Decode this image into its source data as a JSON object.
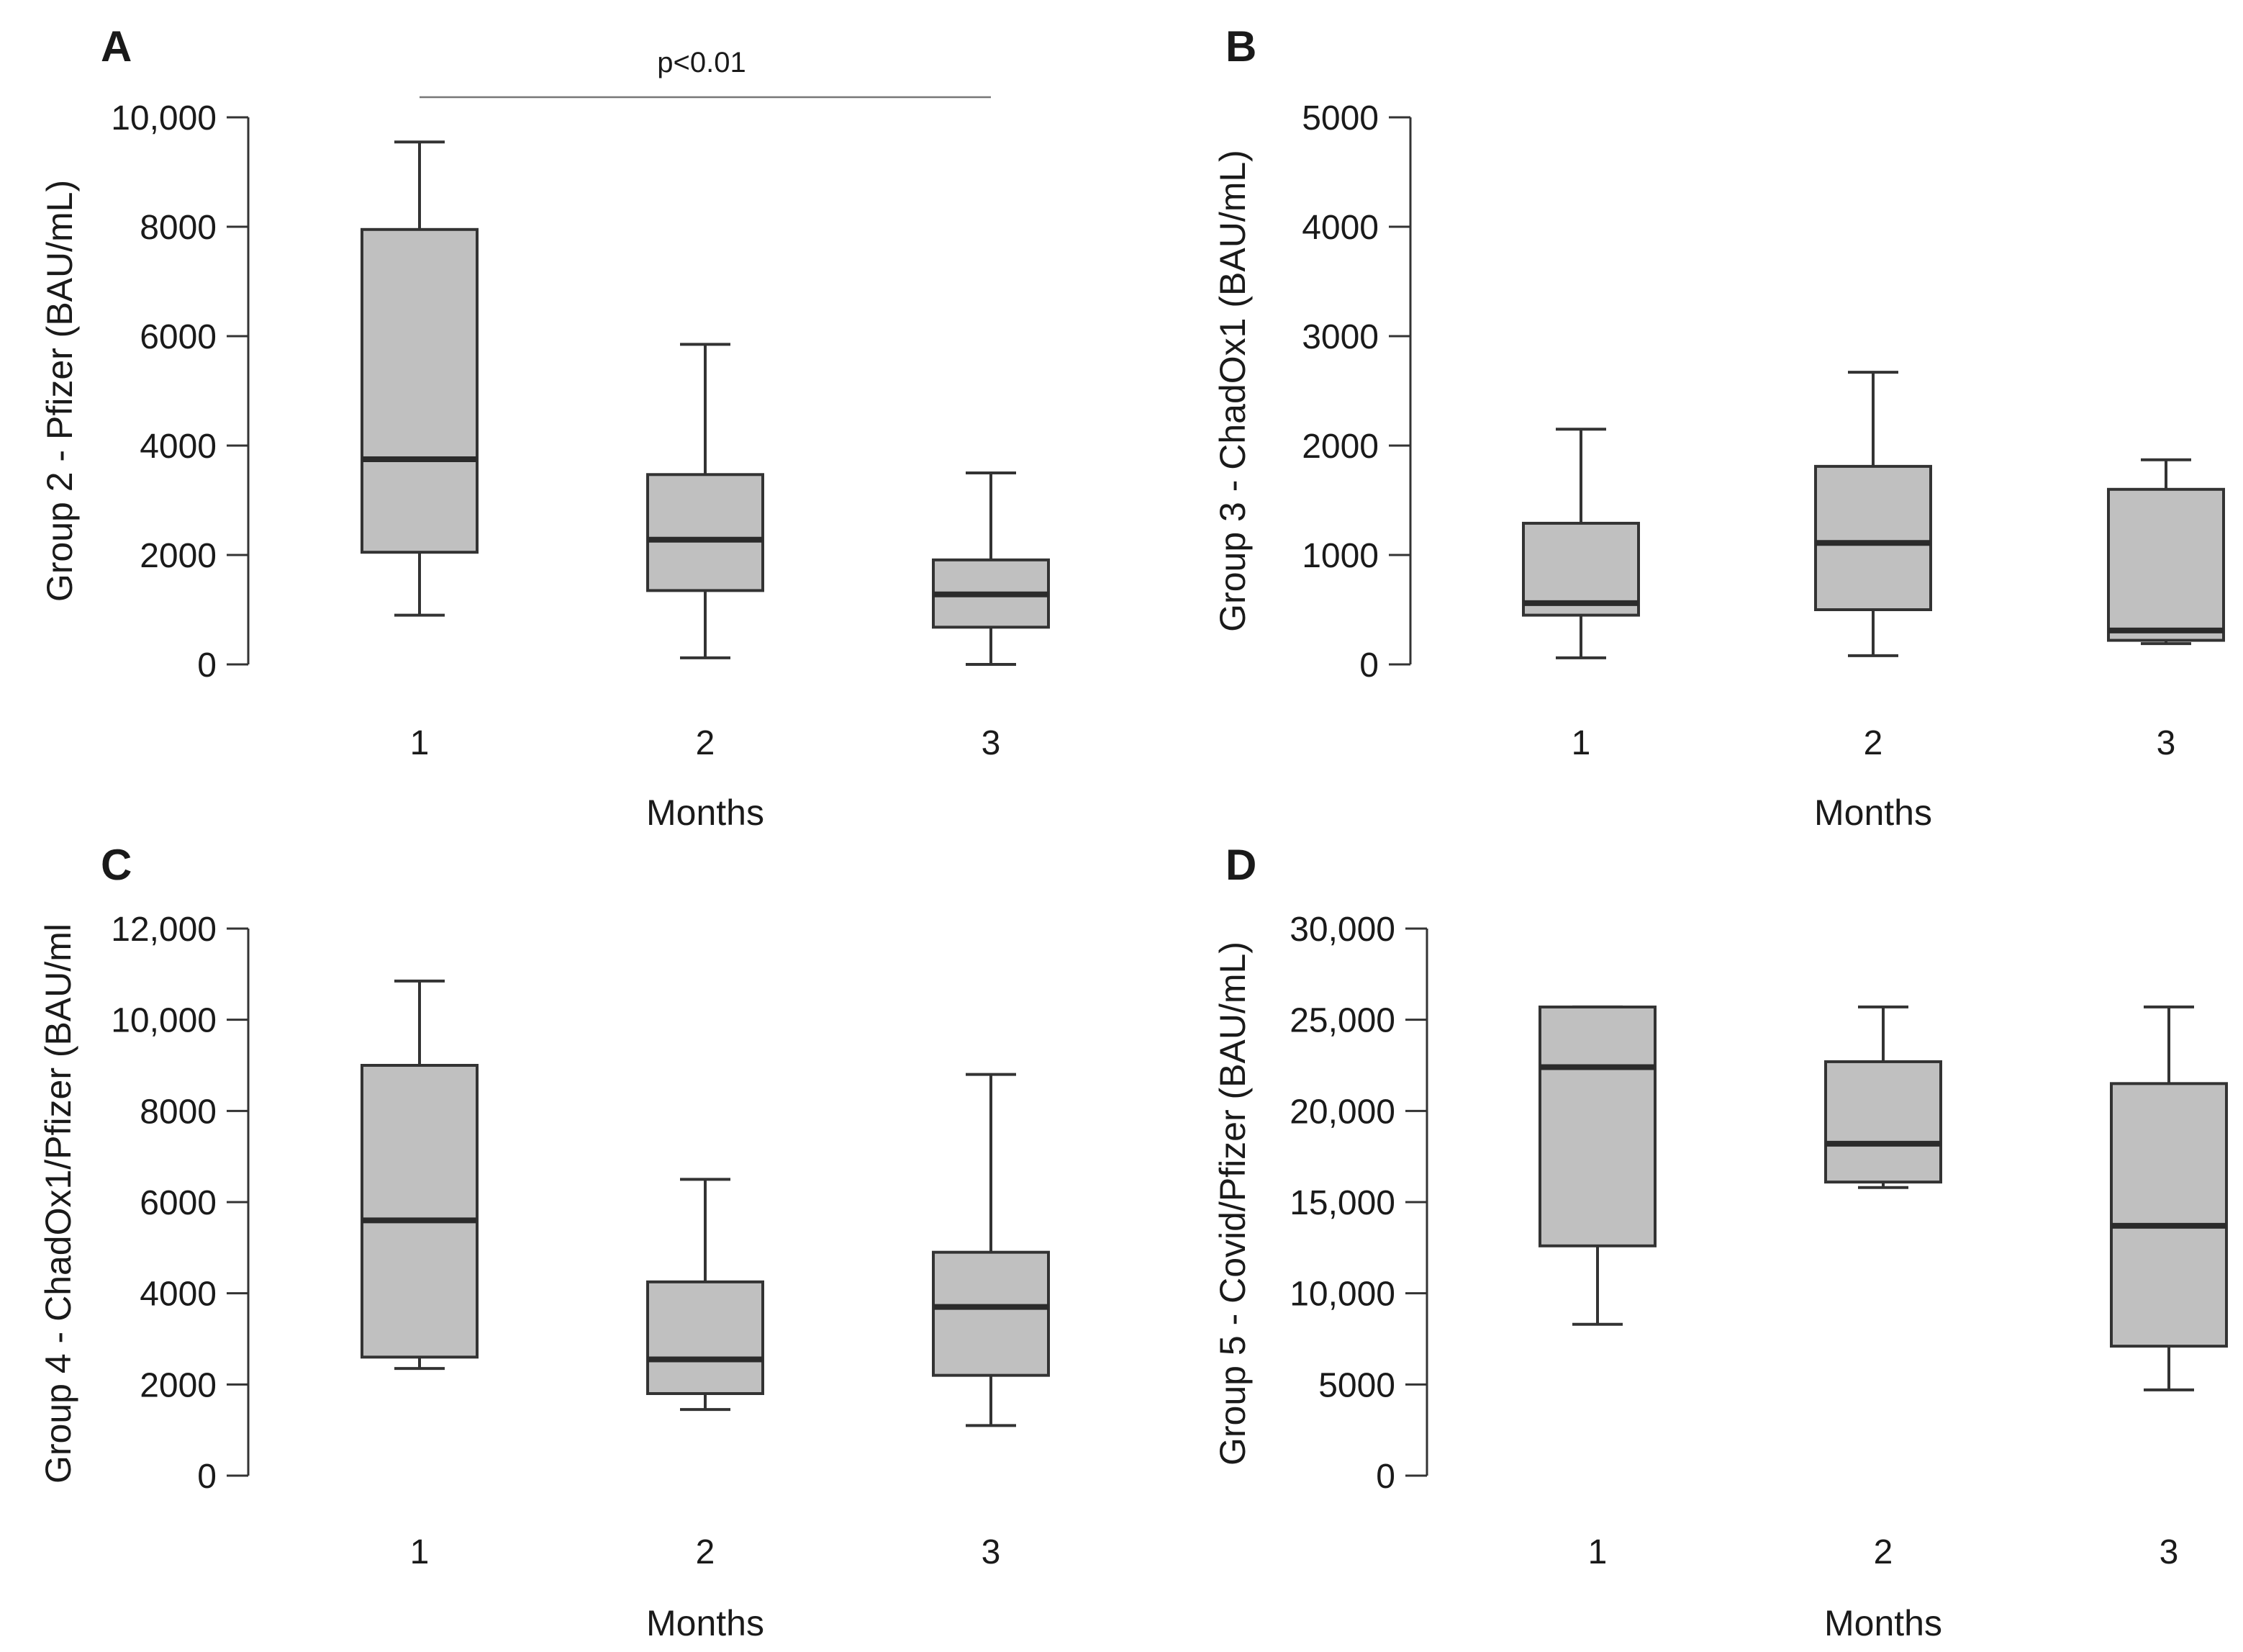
{
  "chart_data": [
    {
      "type": "boxplot",
      "panel": "A",
      "ylabel": "Group 2 - Pfizer (BAU/mL)",
      "xlabel": "Months",
      "categories": [
        "1",
        "2",
        "3"
      ],
      "ylim": [
        0,
        10000
      ],
      "yticks": [
        0,
        2000,
        4000,
        6000,
        8000,
        10000
      ],
      "ytick_labels": [
        "0",
        "2000",
        "4000",
        "6000",
        "8000",
        "10,000"
      ],
      "boxes": [
        {
          "whislo": 900,
          "q1": 2050,
          "med": 3750,
          "q3": 7950,
          "whishi": 9550
        },
        {
          "whislo": 120,
          "q1": 1350,
          "med": 2280,
          "q3": 3470,
          "whishi": 5850
        },
        {
          "whislo": 0,
          "q1": 680,
          "med": 1280,
          "q3": 1910,
          "whishi": 3500
        }
      ],
      "annotation": {
        "text": "p<0.01",
        "from": "1",
        "to": "3"
      }
    },
    {
      "type": "boxplot",
      "panel": "B",
      "ylabel": "Group 3 - ChadOx1 (BAU/mL)",
      "xlabel": "Months",
      "categories": [
        "1",
        "2",
        "3"
      ],
      "ylim": [
        0,
        5000
      ],
      "yticks": [
        0,
        1000,
        2000,
        3000,
        4000,
        5000
      ],
      "ytick_labels": [
        "0",
        "1000",
        "2000",
        "3000",
        "4000",
        "5000"
      ],
      "boxes": [
        {
          "whislo": 60,
          "q1": 450,
          "med": 560,
          "q3": 1290,
          "whishi": 2150
        },
        {
          "whislo": 80,
          "q1": 500,
          "med": 1110,
          "q3": 1810,
          "whishi": 2670
        },
        {
          "whislo": 190,
          "q1": 220,
          "med": 310,
          "q3": 1600,
          "whishi": 1870
        }
      ]
    },
    {
      "type": "boxplot",
      "panel": "C",
      "ylabel": "Group 4 - ChadOx1/Pfizer (BAU/ml",
      "xlabel": "Months",
      "categories": [
        "1",
        "2",
        "3"
      ],
      "ylim": [
        0,
        12000
      ],
      "yticks": [
        0,
        2000,
        4000,
        6000,
        8000,
        10000,
        12000
      ],
      "ytick_labels": [
        "0",
        "2000",
        "4000",
        "6000",
        "8000",
        "10,000",
        "12,000"
      ],
      "boxes": [
        {
          "whislo": 2350,
          "q1": 2600,
          "med": 5600,
          "q3": 9000,
          "whishi": 10850
        },
        {
          "whislo": 1450,
          "q1": 1800,
          "med": 2550,
          "q3": 4250,
          "whishi": 6500
        },
        {
          "whislo": 1100,
          "q1": 2200,
          "med": 3700,
          "q3": 4900,
          "whishi": 8800
        }
      ]
    },
    {
      "type": "boxplot",
      "panel": "D",
      "ylabel": "Group 5 - Covid/Pfizer (BAU/mL)",
      "xlabel": "Months",
      "categories": [
        "1",
        "2",
        "3"
      ],
      "ylim": [
        0,
        30000
      ],
      "yticks": [
        0,
        5000,
        10000,
        15000,
        20000,
        25000,
        30000
      ],
      "ytick_labels": [
        "0",
        "5000",
        "10,000",
        "15,000",
        "20,000",
        "25,000",
        "30,000"
      ],
      "boxes": [
        {
          "whislo": 8300,
          "q1": 12600,
          "med": 22400,
          "q3": 25700,
          "whishi": 25700
        },
        {
          "whislo": 15800,
          "q1": 16100,
          "med": 18200,
          "q3": 22700,
          "whishi": 25700
        },
        {
          "whislo": 4700,
          "q1": 7100,
          "med": 13700,
          "q3": 21500,
          "whishi": 25700
        }
      ]
    }
  ],
  "style": {
    "box_fill": "#c0c0c0",
    "line_color": "#333333",
    "median_color": "#2b2b2b",
    "bracket_color": "#777777"
  }
}
